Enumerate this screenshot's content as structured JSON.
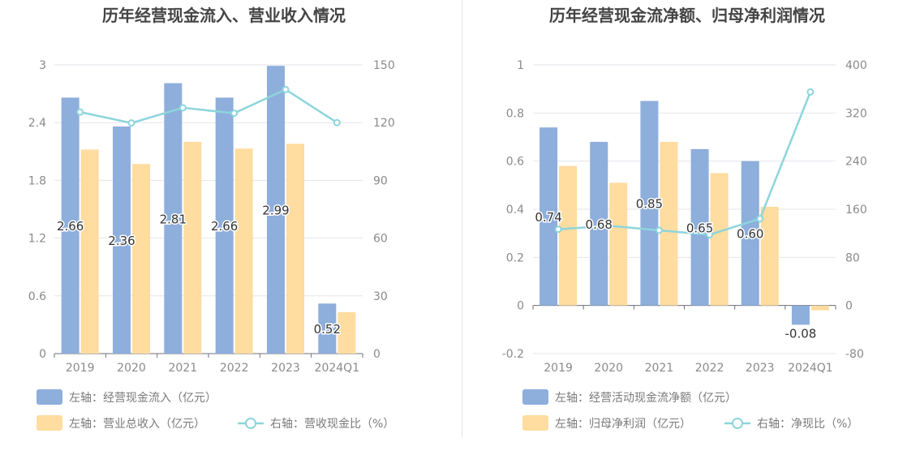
{
  "colors": {
    "bar_primary": "#8eaedc",
    "bar_secondary": "#ffdc9f",
    "line": "#8dd5dc",
    "axis_text": "#8a8a8a",
    "grid": "#e4e6ee",
    "title": "#444444",
    "legend_text": "#7a7a7a",
    "label_text": "#333333"
  },
  "chart_data": [
    {
      "type": "bar",
      "title": "历年经营现金流入、营业收入情况",
      "categories": [
        "2019",
        "2020",
        "2021",
        "2022",
        "2023",
        "2024Q1"
      ],
      "left_axis": {
        "ylim": [
          0,
          3
        ],
        "ticks": [
          "0",
          "0.6",
          "1.2",
          "1.8",
          "2.4",
          "3"
        ]
      },
      "right_axis": {
        "ylim": [
          0,
          150
        ],
        "ticks": [
          "0",
          "30",
          "60",
          "90",
          "120",
          "150"
        ]
      },
      "series": [
        {
          "name": "左轴：经营现金流入（亿元）",
          "kind": "bar",
          "axis": "left",
          "color": "#8eaedc",
          "values": [
            2.66,
            2.36,
            2.81,
            2.66,
            2.99,
            0.52
          ],
          "labels": [
            "2.66",
            "2.36",
            "2.81",
            "2.66",
            "2.99",
            "0.52"
          ]
        },
        {
          "name": "左轴：营业总收入（亿元）",
          "kind": "bar",
          "axis": "left",
          "color": "#ffdc9f",
          "values": [
            2.12,
            1.97,
            2.2,
            2.13,
            2.18,
            0.43
          ]
        },
        {
          "name": "右轴：营收现金比（%）",
          "kind": "line",
          "axis": "right",
          "color": "#8dd5dc",
          "values": [
            125.5,
            119.8,
            127.7,
            124.9,
            137.2,
            120.0
          ]
        }
      ],
      "legend": [
        "左轴：经营现金流入（亿元）",
        "左轴：营业总收入（亿元）",
        "右轴：营收现金比（%）"
      ],
      "legend_position": "bottom-left",
      "grid": true
    },
    {
      "type": "bar",
      "title": "历年经营现金流净额、归母净利润情况",
      "categories": [
        "2019",
        "2020",
        "2021",
        "2022",
        "2023",
        "2024Q1"
      ],
      "left_axis": {
        "ylim": [
          -0.2,
          1
        ],
        "ticks": [
          "-0.2",
          "0",
          "0.2",
          "0.4",
          "0.6",
          "0.8",
          "1"
        ]
      },
      "right_axis": {
        "ylim": [
          -80,
          400
        ],
        "ticks": [
          "-80",
          "0",
          "80",
          "160",
          "240",
          "320",
          "400"
        ]
      },
      "series": [
        {
          "name": "左轴：经营活动现金流净额（亿元）",
          "kind": "bar",
          "axis": "left",
          "color": "#8eaedc",
          "values": [
            0.74,
            0.68,
            0.85,
            0.65,
            0.6,
            -0.08
          ],
          "labels": [
            "0.74",
            "0.68",
            "0.85",
            "0.65",
            "0.60",
            "-0.08"
          ]
        },
        {
          "name": "左轴：归母净利润（亿元）",
          "kind": "bar",
          "axis": "left",
          "color": "#ffdc9f",
          "values": [
            0.58,
            0.51,
            0.68,
            0.55,
            0.41,
            -0.02
          ]
        },
        {
          "name": "右轴：净现比（%）",
          "kind": "line",
          "axis": "right",
          "color": "#8dd5dc",
          "values": [
            126.6,
            132.6,
            125.0,
            117.6,
            144.2,
            355.0
          ]
        }
      ],
      "legend": [
        "左轴：经营活动现金流净额（亿元）",
        "左轴：归母净利润（亿元）",
        "右轴：净现比（%）"
      ],
      "legend_position": "bottom-left",
      "grid": true
    }
  ]
}
